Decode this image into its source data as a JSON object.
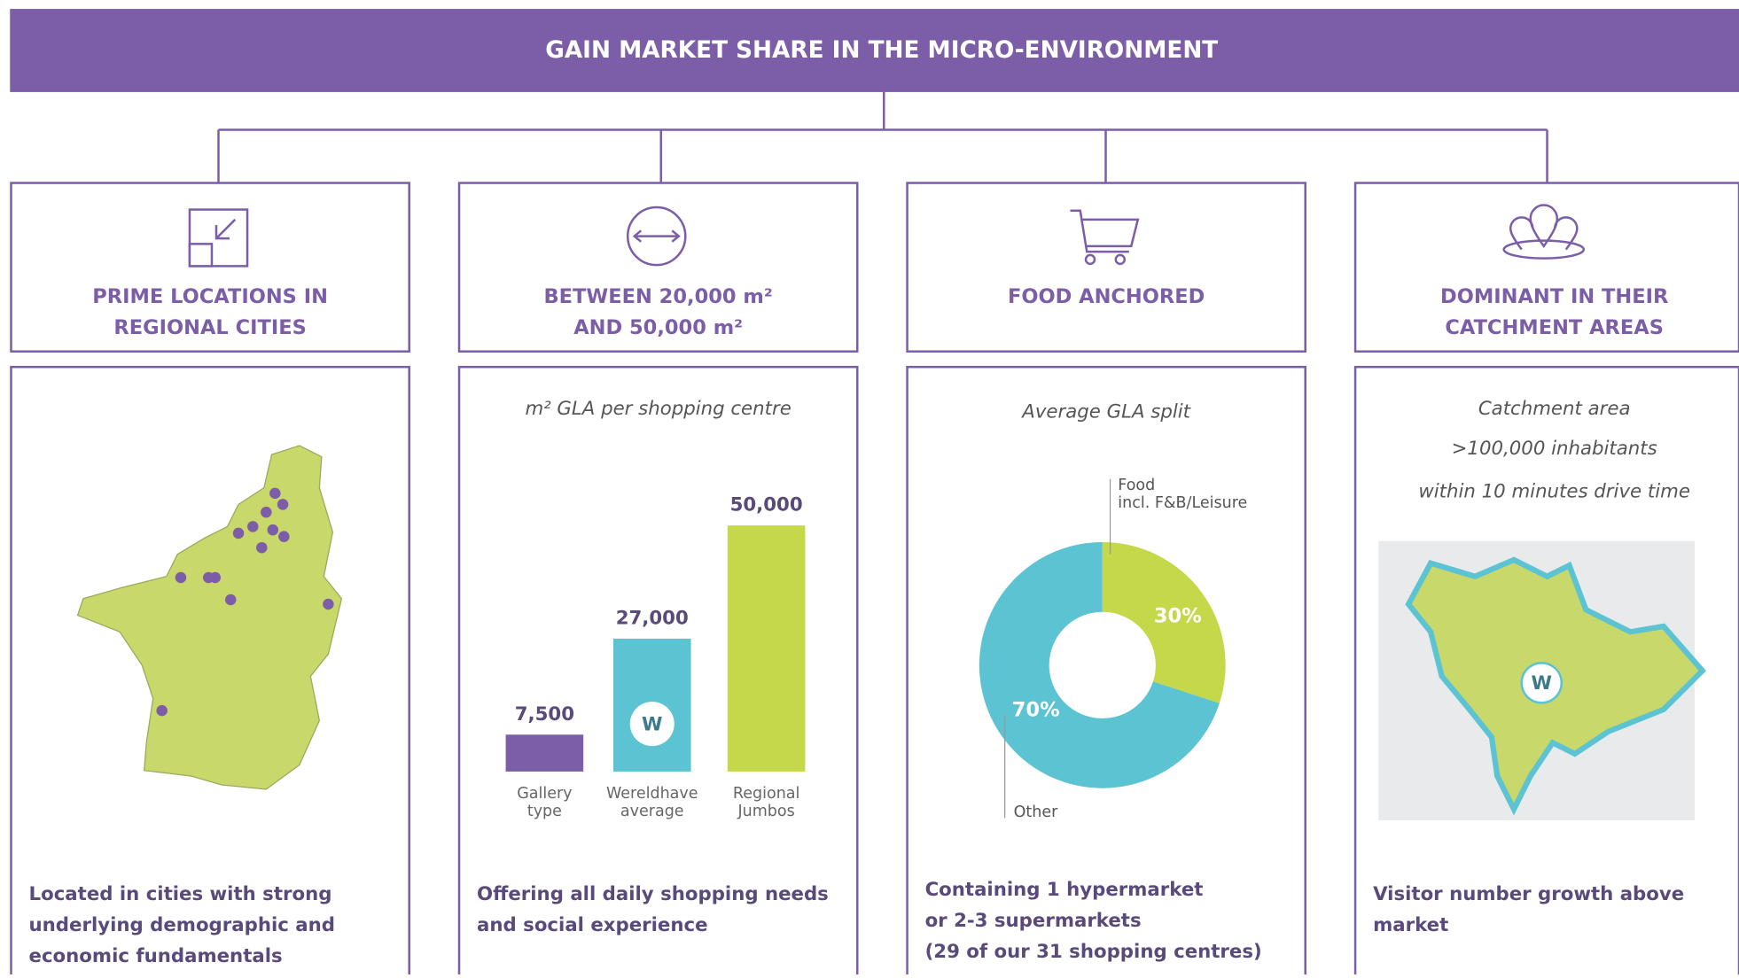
{
  "title": "GAIN MARKET SHARE IN THE MICRO-ENVIRONMENT",
  "columns": [
    {
      "heading": [
        "PRIME LOCATIONS IN",
        "REGIONAL CITIES"
      ],
      "text": [
        "Located in cities with strong",
        "underlying demographic and",
        "economic fundamentals"
      ]
    },
    {
      "heading": [
        "BETWEEN 20,000 m²",
        "AND 50,000 m²"
      ],
      "subtitle": [
        "m² GLA per shopping centre"
      ],
      "text": [
        "Offering all daily shopping needs",
        "and social experience"
      ]
    },
    {
      "heading": [
        "FOOD ANCHORED"
      ],
      "subtitle": [
        "Average GLA split"
      ],
      "text": [
        "Containing 1 hypermarket",
        "or 2-3 supermarkets",
        "(29 of our 31 shopping centres)"
      ]
    },
    {
      "heading": [
        "DOMINANT IN THEIR",
        "CATCHMENT AREAS"
      ],
      "subtitle": [
        "Catchment area",
        ">100,000 inhabitants",
        "within 10 minutes drive time"
      ],
      "text": [
        "Visitor number growth above",
        "market"
      ]
    }
  ],
  "chart_data": [
    {
      "type": "bar",
      "categories": [
        [
          "Gallery",
          "type"
        ],
        [
          "Wereldhave",
          "average"
        ],
        [
          "Regional",
          "Jumbos"
        ]
      ],
      "values": [
        7500,
        27000,
        50000
      ],
      "value_labels": [
        "7,500",
        "27,000",
        "50,000"
      ],
      "colors": [
        "#7b5ea7",
        "#5bc3d1",
        "#c5d84a"
      ]
    },
    {
      "type": "pie",
      "categories": [
        [
          "Food",
          "incl. F&B/Leisure"
        ],
        [
          "Other"
        ]
      ],
      "values": [
        30,
        70
      ],
      "value_labels": [
        "30%",
        "70%"
      ],
      "colors": [
        "#c5d84a",
        "#5bc3d1"
      ]
    }
  ]
}
